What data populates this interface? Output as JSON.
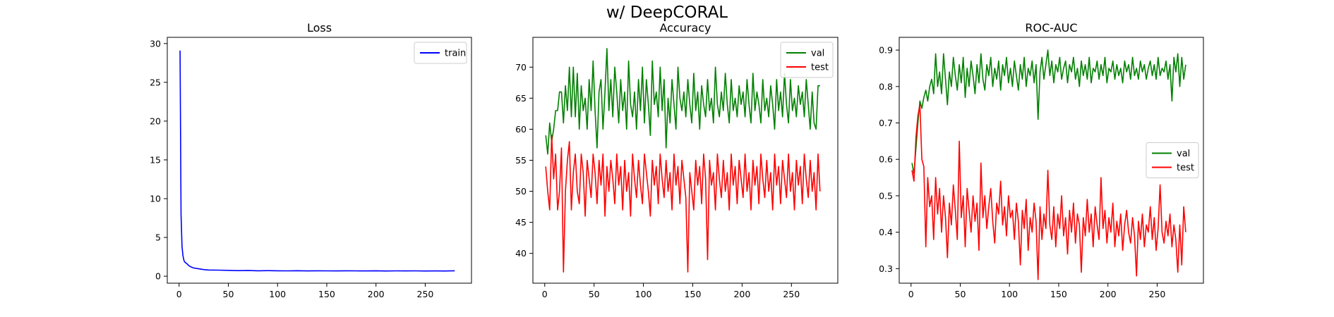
{
  "figure": {
    "suptitle": "w/ DeepCORAL"
  },
  "colors": {
    "train": "#0000ff",
    "val": "#008000",
    "test": "#ff0000",
    "frame": "#000000",
    "background": "#ffffff"
  },
  "chart_data": [
    {
      "type": "line",
      "title": "Loss",
      "xlabel": "",
      "ylabel": "",
      "xlim": [
        -12,
        297
      ],
      "ylim": [
        -0.9,
        30.8
      ],
      "xticks": [
        0,
        50,
        100,
        150,
        200,
        250
      ],
      "yticks": [
        0,
        5,
        10,
        15,
        20,
        25,
        30
      ],
      "legend": "top-right",
      "grid": false,
      "series": [
        {
          "name": "train",
          "color": "#0000ff",
          "x": [
            1,
            2,
            3,
            4,
            5,
            6,
            8,
            10,
            12,
            15,
            20,
            25,
            30,
            40,
            50,
            60,
            70,
            80,
            90,
            100,
            110,
            120,
            130,
            140,
            150,
            160,
            170,
            180,
            190,
            200,
            210,
            220,
            230,
            240,
            250,
            260,
            270,
            280
          ],
          "y": [
            29.1,
            8.0,
            3.8,
            2.6,
            2.0,
            1.8,
            1.6,
            1.35,
            1.2,
            1.05,
            0.95,
            0.85,
            0.8,
            0.78,
            0.75,
            0.72,
            0.74,
            0.7,
            0.72,
            0.7,
            0.69,
            0.71,
            0.68,
            0.7,
            0.69,
            0.68,
            0.7,
            0.69,
            0.68,
            0.7,
            0.67,
            0.69,
            0.68,
            0.69,
            0.67,
            0.68,
            0.67,
            0.7
          ]
        }
      ]
    },
    {
      "type": "line",
      "title": "Accuracy",
      "xlabel": "",
      "ylabel": "",
      "xlim": [
        -12,
        297
      ],
      "ylim": [
        35.2,
        74.8
      ],
      "xticks": [
        0,
        50,
        100,
        150,
        200,
        250
      ],
      "yticks": [
        40,
        45,
        50,
        55,
        60,
        65,
        70
      ],
      "legend": "top-right",
      "grid": false,
      "series": [
        {
          "name": "val",
          "color": "#008000",
          "x_start": 1,
          "x_step": 2,
          "values": [
            59,
            56,
            61,
            58,
            60,
            63,
            63,
            66,
            66,
            61,
            67,
            63,
            70,
            62,
            70,
            62,
            69,
            60,
            67,
            63,
            65,
            60,
            68,
            63,
            71,
            63,
            57,
            66,
            68,
            60,
            66,
            73,
            63,
            68,
            62,
            70,
            66,
            61,
            68,
            63,
            66,
            60,
            71,
            64,
            62,
            66,
            60,
            68,
            63,
            70,
            61,
            68,
            64,
            59,
            71,
            64,
            66,
            62,
            70,
            63,
            68,
            57,
            65,
            61,
            68,
            64,
            60,
            70,
            65,
            63,
            66,
            62,
            68,
            64,
            61,
            69,
            63,
            66,
            60,
            67,
            64,
            62,
            68,
            63,
            65,
            61,
            70,
            64,
            62,
            66,
            63,
            69,
            64,
            61,
            68,
            63,
            65,
            62,
            67,
            64,
            66,
            62,
            68,
            64,
            61,
            69,
            63,
            66,
            64,
            61,
            68,
            63,
            65,
            62,
            67,
            64,
            60,
            68,
            63,
            66,
            62,
            69,
            64,
            61,
            68,
            63,
            65,
            62,
            67,
            64,
            66,
            62,
            68,
            64,
            60,
            66,
            61,
            60,
            67,
            67
          ]
        },
        {
          "name": "test",
          "color": "#ff0000",
          "x_start": 1,
          "x_step": 2,
          "values": [
            54,
            50,
            47,
            59,
            52,
            56,
            47,
            50,
            57,
            37,
            50,
            55,
            58,
            47,
            53,
            56,
            50,
            48,
            56,
            53,
            46,
            55,
            52,
            49,
            56,
            53,
            48,
            55,
            51,
            56,
            46,
            54,
            50,
            55,
            52,
            48,
            56,
            51,
            54,
            47,
            55,
            50,
            53,
            46,
            56,
            52,
            49,
            55,
            51,
            48,
            56,
            53,
            50,
            46,
            55,
            51,
            54,
            48,
            56,
            52,
            49,
            55,
            50,
            53,
            47,
            56,
            51,
            54,
            48,
            55,
            52,
            49,
            37,
            53,
            50,
            47,
            55,
            51,
            54,
            48,
            56,
            52,
            39,
            55,
            51,
            53,
            47,
            56,
            52,
            49,
            55,
            50,
            53,
            47,
            56,
            51,
            54,
            48,
            55,
            52,
            49,
            56,
            50,
            53,
            47,
            55,
            51,
            54,
            48,
            56,
            52,
            49,
            55,
            50,
            53,
            47,
            56,
            51,
            54,
            48,
            55,
            52,
            49,
            56,
            50,
            53,
            47,
            55,
            51,
            54,
            48,
            56,
            52,
            49,
            55,
            50,
            53,
            47,
            56,
            50
          ]
        }
      ]
    },
    {
      "type": "line",
      "title": "ROC-AUC",
      "xlabel": "",
      "ylabel": "",
      "xlim": [
        -12,
        297
      ],
      "ylim": [
        0.26,
        0.935
      ],
      "xticks": [
        0,
        50,
        100,
        150,
        200,
        250
      ],
      "yticks": [
        0.3,
        0.4,
        0.5,
        0.6,
        0.7,
        0.8,
        0.9
      ],
      "legend": "center-right",
      "grid": false,
      "series": [
        {
          "name": "val",
          "color": "#008000",
          "x_start": 1,
          "x_step": 2,
          "values": [
            0.59,
            0.56,
            0.63,
            0.7,
            0.76,
            0.74,
            0.77,
            0.79,
            0.76,
            0.8,
            0.82,
            0.78,
            0.89,
            0.8,
            0.84,
            0.78,
            0.89,
            0.82,
            0.75,
            0.84,
            0.8,
            0.88,
            0.83,
            0.79,
            0.86,
            0.81,
            0.88,
            0.77,
            0.85,
            0.8,
            0.87,
            0.83,
            0.78,
            0.86,
            0.81,
            0.89,
            0.82,
            0.79,
            0.86,
            0.83,
            0.88,
            0.8,
            0.85,
            0.82,
            0.87,
            0.79,
            0.86,
            0.83,
            0.88,
            0.81,
            0.85,
            0.8,
            0.87,
            0.83,
            0.79,
            0.86,
            0.82,
            0.88,
            0.8,
            0.85,
            0.83,
            0.87,
            0.81,
            0.86,
            0.71,
            0.84,
            0.88,
            0.82,
            0.86,
            0.9,
            0.83,
            0.87,
            0.81,
            0.86,
            0.84,
            0.88,
            0.82,
            0.85,
            0.87,
            0.81,
            0.86,
            0.84,
            0.88,
            0.82,
            0.85,
            0.8,
            0.87,
            0.83,
            0.86,
            0.82,
            0.88,
            0.81,
            0.85,
            0.84,
            0.87,
            0.82,
            0.86,
            0.83,
            0.88,
            0.81,
            0.85,
            0.84,
            0.87,
            0.82,
            0.86,
            0.83,
            0.85,
            0.81,
            0.87,
            0.84,
            0.86,
            0.82,
            0.88,
            0.83,
            0.85,
            0.82,
            0.87,
            0.84,
            0.86,
            0.82,
            0.85,
            0.87,
            0.83,
            0.86,
            0.82,
            0.88,
            0.83,
            0.85,
            0.84,
            0.87,
            0.82,
            0.86,
            0.76,
            0.88,
            0.84,
            0.89,
            0.8,
            0.88,
            0.82,
            0.86
          ]
        },
        {
          "name": "test",
          "color": "#ff0000",
          "x_start": 1,
          "x_step": 2,
          "values": [
            0.57,
            0.54,
            0.66,
            0.72,
            0.75,
            0.6,
            0.58,
            0.36,
            0.55,
            0.47,
            0.5,
            0.38,
            0.55,
            0.45,
            0.52,
            0.4,
            0.5,
            0.44,
            0.33,
            0.48,
            0.42,
            0.53,
            0.46,
            0.38,
            0.65,
            0.44,
            0.5,
            0.36,
            0.52,
            0.46,
            0.4,
            0.5,
            0.43,
            0.48,
            0.35,
            0.59,
            0.44,
            0.5,
            0.41,
            0.47,
            0.52,
            0.43,
            0.37,
            0.48,
            0.45,
            0.54,
            0.42,
            0.47,
            0.39,
            0.5,
            0.44,
            0.46,
            0.38,
            0.48,
            0.43,
            0.31,
            0.46,
            0.41,
            0.49,
            0.35,
            0.44,
            0.4,
            0.48,
            0.43,
            0.27,
            0.47,
            0.38,
            0.45,
            0.41,
            0.57,
            0.42,
            0.38,
            0.47,
            0.36,
            0.45,
            0.41,
            0.5,
            0.39,
            0.44,
            0.34,
            0.46,
            0.4,
            0.48,
            0.37,
            0.45,
            0.42,
            0.29,
            0.44,
            0.39,
            0.49,
            0.4,
            0.45,
            0.36,
            0.47,
            0.42,
            0.38,
            0.55,
            0.41,
            0.46,
            0.37,
            0.44,
            0.4,
            0.48,
            0.36,
            0.43,
            0.39,
            0.45,
            0.35,
            0.42,
            0.46,
            0.4,
            0.37,
            0.44,
            0.39,
            0.28,
            0.43,
            0.38,
            0.45,
            0.36,
            0.42,
            0.4,
            0.47,
            0.38,
            0.44,
            0.35,
            0.41,
            0.53,
            0.4,
            0.37,
            0.43,
            0.39,
            0.45,
            0.36,
            0.42,
            0.38,
            0.29,
            0.42,
            0.31,
            0.47,
            0.4
          ]
        }
      ]
    }
  ]
}
